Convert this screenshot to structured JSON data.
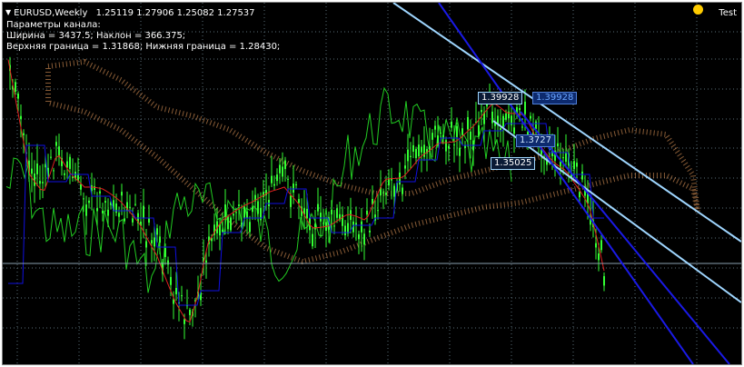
{
  "chart": {
    "symbol_timeframe": "EURUSD,Weekly",
    "ohlc": "1.25119 1.27906 1.25082 1.27537",
    "expert_name": "Test",
    "info_lines": [
      "Параметры канала:",
      "Ширина = 3437.5; Наклон = 366.375;",
      "Верхняя граница = 1.31868; Нижняя граница = 1.28430;"
    ],
    "price_labels": [
      "1.39928",
      "1.39928",
      "1.3727",
      "1.35025"
    ]
  },
  "colors": {
    "background": "#000000",
    "grid": "#5a6e78",
    "candles": "#33ff33",
    "chikou": "#22cc22",
    "tenkan": "#e02020",
    "kijun": "#1010e0",
    "kumo": "#f4a460",
    "channel_light": "#9fd6ff",
    "channel_blue": "#1a1ae6",
    "price_line": "#8aa0b0"
  }
}
